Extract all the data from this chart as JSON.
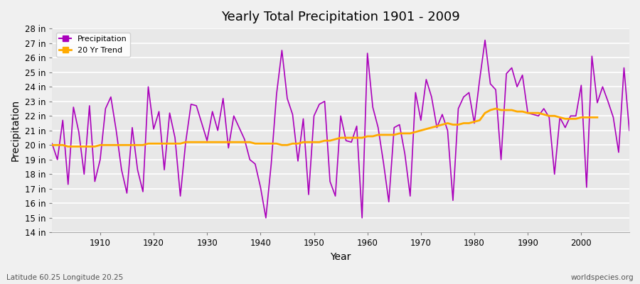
{
  "title": "Yearly Total Precipitation 1901 - 2009",
  "xlabel": "Year",
  "ylabel": "Precipitation",
  "subtitle_left": "Latitude 60.25 Longitude 20.25",
  "watermark": "worldspecies.org",
  "ylim": [
    14,
    28
  ],
  "yticks": [
    14,
    15,
    16,
    17,
    18,
    19,
    20,
    21,
    22,
    23,
    24,
    25,
    26,
    27,
    28
  ],
  "xticks": [
    1910,
    1920,
    1930,
    1940,
    1950,
    1960,
    1970,
    1980,
    1990,
    2000
  ],
  "precip_color": "#aa00bb",
  "trend_color": "#ffaa00",
  "bg_color": "#e8e8e8",
  "fig_bg": "#f0f0f0",
  "years": [
    1901,
    1902,
    1903,
    1904,
    1905,
    1906,
    1907,
    1908,
    1909,
    1910,
    1911,
    1912,
    1913,
    1914,
    1915,
    1916,
    1917,
    1918,
    1919,
    1920,
    1921,
    1922,
    1923,
    1924,
    1925,
    1926,
    1927,
    1928,
    1929,
    1930,
    1931,
    1932,
    1933,
    1934,
    1935,
    1936,
    1937,
    1938,
    1939,
    1940,
    1941,
    1942,
    1943,
    1944,
    1945,
    1946,
    1947,
    1948,
    1949,
    1950,
    1951,
    1952,
    1953,
    1954,
    1955,
    1956,
    1957,
    1958,
    1959,
    1960,
    1961,
    1962,
    1963,
    1964,
    1965,
    1966,
    1967,
    1968,
    1969,
    1970,
    1971,
    1972,
    1973,
    1974,
    1975,
    1976,
    1977,
    1978,
    1979,
    1980,
    1981,
    1982,
    1983,
    1984,
    1985,
    1986,
    1987,
    1988,
    1989,
    1990,
    1991,
    1992,
    1993,
    1994,
    1995,
    1996,
    1997,
    1998,
    1999,
    2000,
    2001,
    2002,
    2003,
    2004,
    2005,
    2006,
    2007,
    2008,
    2009
  ],
  "precipitation": [
    20.1,
    19.0,
    21.7,
    17.3,
    22.6,
    20.9,
    18.0,
    22.7,
    17.5,
    19.0,
    22.5,
    23.3,
    21.0,
    18.3,
    16.7,
    21.2,
    18.3,
    16.8,
    24.0,
    21.1,
    22.3,
    18.3,
    22.2,
    20.5,
    16.5,
    20.2,
    22.8,
    22.7,
    21.5,
    20.3,
    22.3,
    21.0,
    23.2,
    19.8,
    22.0,
    21.2,
    20.4,
    19.0,
    18.7,
    17.1,
    15.0,
    18.7,
    23.5,
    26.5,
    23.2,
    22.1,
    18.9,
    21.8,
    16.6,
    22.0,
    22.8,
    23.0,
    17.5,
    16.5,
    22.0,
    20.3,
    20.2,
    21.3,
    15.0,
    26.3,
    22.6,
    21.2,
    18.8,
    16.1,
    21.2,
    21.4,
    19.4,
    16.5,
    23.6,
    21.7,
    24.5,
    23.3,
    21.2,
    22.1,
    21.0,
    16.2,
    22.5,
    23.3,
    23.6,
    21.5,
    24.5,
    27.2,
    24.2,
    23.8,
    19.0,
    24.9,
    25.3,
    24.0,
    24.8,
    22.2,
    22.1,
    22.0,
    22.5,
    21.9,
    18.0,
    21.9,
    21.2,
    22.0,
    22.0,
    24.1,
    17.1,
    26.1,
    22.9,
    24.0,
    23.0,
    21.9,
    19.5,
    25.3,
    21.0
  ],
  "trend": [
    20.0,
    20.0,
    20.0,
    19.9,
    19.9,
    19.9,
    19.9,
    19.9,
    19.9,
    20.0,
    20.0,
    20.0,
    20.0,
    20.0,
    20.0,
    20.0,
    20.0,
    20.0,
    20.1,
    20.1,
    20.1,
    20.1,
    20.1,
    20.1,
    20.1,
    20.2,
    20.2,
    20.2,
    20.2,
    20.2,
    20.2,
    20.2,
    20.2,
    20.2,
    20.2,
    20.2,
    20.2,
    20.2,
    20.1,
    20.1,
    20.1,
    20.1,
    20.1,
    20.0,
    20.0,
    20.1,
    20.1,
    20.2,
    20.2,
    20.2,
    20.2,
    20.3,
    20.3,
    20.4,
    20.5,
    20.5,
    20.5,
    20.5,
    20.5,
    20.6,
    20.6,
    20.7,
    20.7,
    20.7,
    20.7,
    20.8,
    20.8,
    20.8,
    20.9,
    21.0,
    21.1,
    21.2,
    21.3,
    21.4,
    21.5,
    21.4,
    21.4,
    21.5,
    21.5,
    21.6,
    21.7,
    22.2,
    22.4,
    22.5,
    22.4,
    22.4,
    22.4,
    22.3,
    22.3,
    22.2,
    22.2,
    22.2,
    22.1,
    22.0,
    22.0,
    21.9,
    21.8,
    21.8,
    21.8,
    21.9,
    21.9,
    21.9,
    21.9,
    null,
    null,
    null,
    null,
    null,
    null
  ]
}
